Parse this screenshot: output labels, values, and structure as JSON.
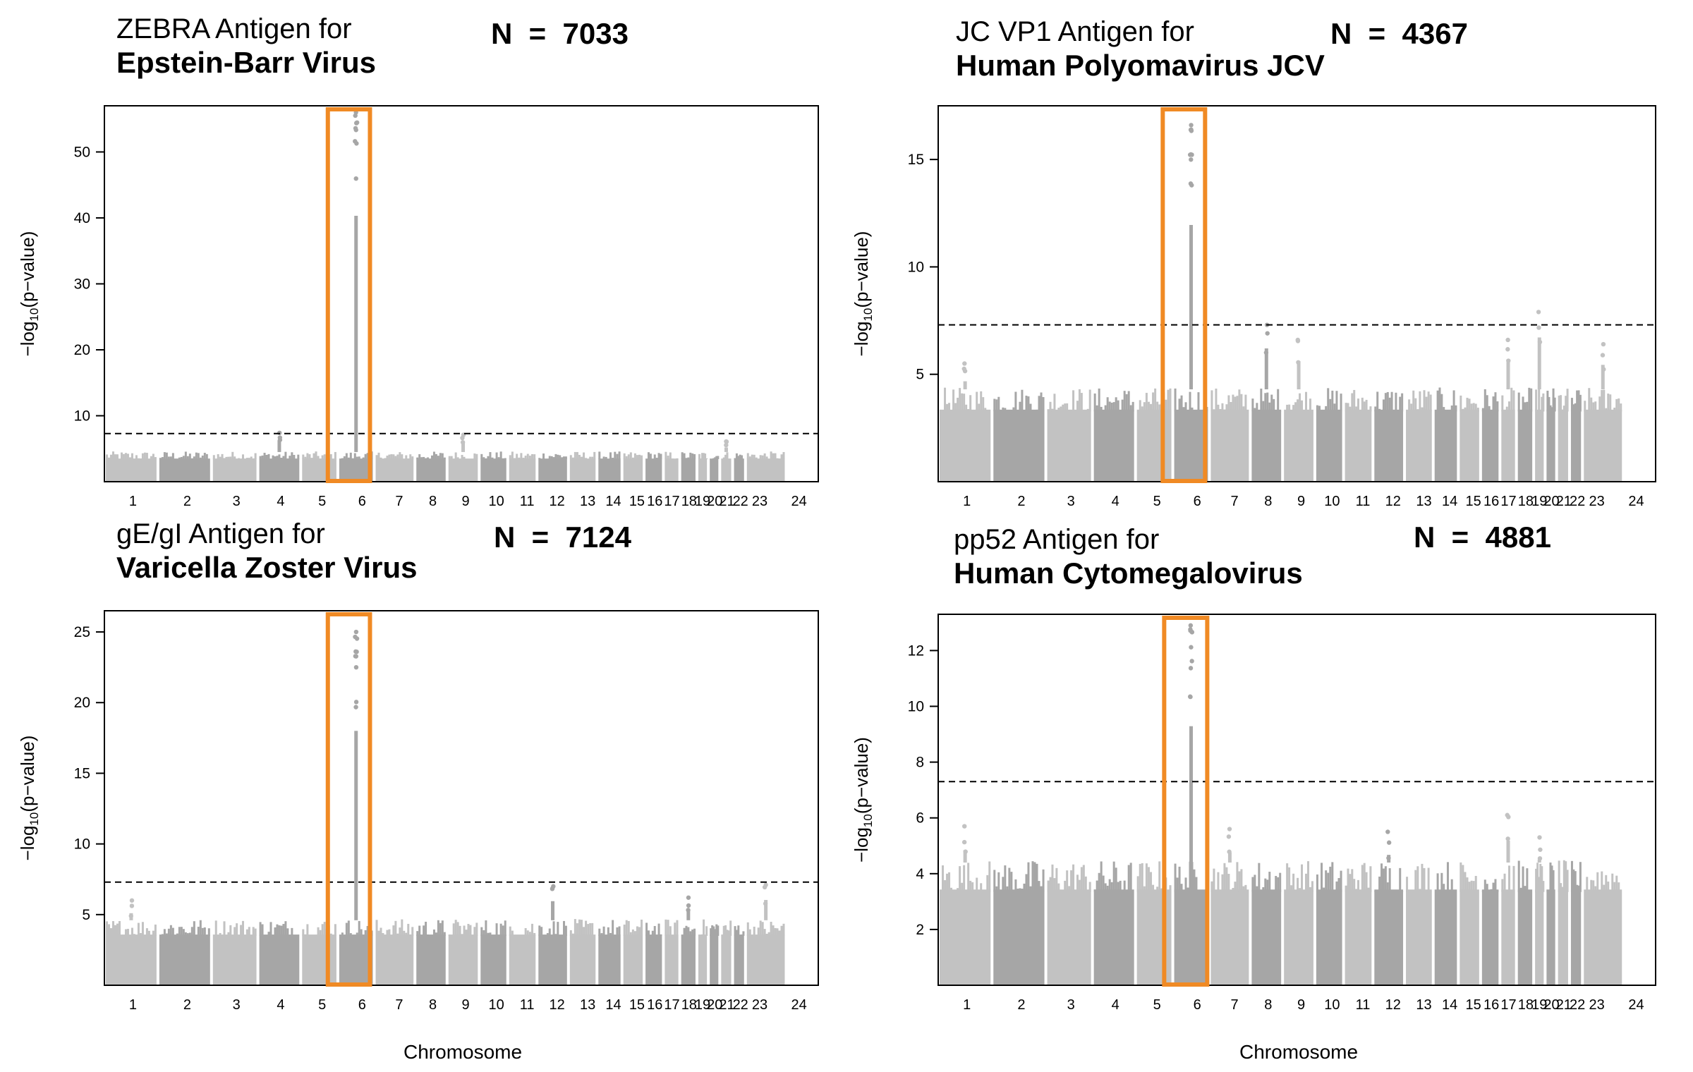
{
  "panels": [
    {
      "title_line1": "ZEBRA Antigen for",
      "title_line2": "Epstein-Barr Virus",
      "n_label": "N  =  7033"
    },
    {
      "title_line1": "JC VP1 Antigen for",
      "title_line2": "Human Polyomavirus JCV",
      "n_label": "N  =  4367"
    },
    {
      "title_line1": "gE/gI Antigen for",
      "title_line2": "Varicella Zoster Virus",
      "n_label": "N  =  7124"
    },
    {
      "title_line1": "pp52 Antigen for",
      "title_line2": "Human Cytomegalovirus",
      "n_label": "N  =  4881"
    }
  ],
  "x_axis_title": "Chromosome",
  "colors": {
    "chrom_light": "#c2c2c2",
    "chrom_dark": "#a6a6a6",
    "highlight_box": "#f08a24",
    "threshold_line": "#000000"
  },
  "chart_data": [
    {
      "type": "scatter",
      "subtype": "manhattan",
      "title": "ZEBRA Antigen for Epstein-Barr Virus",
      "xlabel": "",
      "ylabel": "-log10(p-value)",
      "x_tick_labels": [
        "1",
        "2",
        "3",
        "4",
        "5",
        "6",
        "7",
        "8",
        "9",
        "10",
        "11",
        "12",
        "13",
        "14",
        "15",
        "16",
        "17",
        "18",
        "19",
        "20",
        "21",
        "22",
        "23",
        "24"
      ],
      "y_ticks": [
        10,
        20,
        30,
        40,
        50
      ],
      "ylim": [
        0,
        57
      ],
      "threshold": 7.3,
      "baseline_max": 4.5,
      "highlight_region": "chromosome 6 (HLA)",
      "peaks": [
        {
          "chrom": "6",
          "max_y": 56
        },
        {
          "chrom": "4",
          "max_y": 7.4
        },
        {
          "chrom": "9",
          "max_y": 7.1
        },
        {
          "chrom": "21",
          "max_y": 6.1
        }
      ]
    },
    {
      "type": "scatter",
      "subtype": "manhattan",
      "title": "JC VP1 Antigen for Human Polyomavirus JCV",
      "xlabel": "",
      "ylabel": "-log10(p-value)",
      "x_tick_labels": [
        "1",
        "2",
        "3",
        "4",
        "5",
        "6",
        "7",
        "8",
        "9",
        "10",
        "11",
        "12",
        "13",
        "14",
        "15",
        "16",
        "17",
        "18",
        "19",
        "20",
        "21",
        "22",
        "23",
        "24"
      ],
      "y_ticks": [
        5,
        10,
        15
      ],
      "ylim": [
        0,
        17.5
      ],
      "threshold": 7.3,
      "baseline_max": 4.3,
      "highlight_region": "chromosome 6 (HLA)",
      "peaks": [
        {
          "chrom": "6",
          "max_y": 16.6
        },
        {
          "chrom": "19",
          "max_y": 7.9
        },
        {
          "chrom": "8",
          "max_y": 7.3
        },
        {
          "chrom": "9",
          "max_y": 6.6
        },
        {
          "chrom": "17",
          "max_y": 6.6
        },
        {
          "chrom": "1",
          "max_y": 5.5
        },
        {
          "chrom": "23",
          "max_y": 6.4
        }
      ]
    },
    {
      "type": "scatter",
      "subtype": "manhattan",
      "title": "gE/gI Antigen for Varicella Zoster Virus",
      "xlabel": "Chromosome",
      "ylabel": "-log10(p-value)",
      "x_tick_labels": [
        "1",
        "2",
        "3",
        "4",
        "5",
        "6",
        "7",
        "8",
        "9",
        "10",
        "11",
        "12",
        "13",
        "14",
        "15",
        "16",
        "17",
        "18",
        "19",
        "20",
        "21",
        "22",
        "23",
        "24"
      ],
      "y_ticks": [
        5,
        10,
        15,
        20,
        25
      ],
      "ylim": [
        0,
        26.5
      ],
      "threshold": 7.3,
      "baseline_max": 4.6,
      "highlight_region": "chromosome 6 (HLA)",
      "peaks": [
        {
          "chrom": "6",
          "max_y": 25
        },
        {
          "chrom": "12",
          "max_y": 7.0
        },
        {
          "chrom": "23",
          "max_y": 7.1
        },
        {
          "chrom": "1",
          "max_y": 6.0
        },
        {
          "chrom": "18",
          "max_y": 6.2
        }
      ]
    },
    {
      "type": "scatter",
      "subtype": "manhattan",
      "title": "pp52 Antigen for Human Cytomegalovirus",
      "xlabel": "Chromosome",
      "ylabel": "-log10(p-value)",
      "x_tick_labels": [
        "1",
        "2",
        "3",
        "4",
        "5",
        "6",
        "7",
        "8",
        "9",
        "10",
        "11",
        "12",
        "13",
        "14",
        "15",
        "16",
        "17",
        "18",
        "19",
        "20",
        "21",
        "22",
        "23",
        "24"
      ],
      "y_ticks": [
        2,
        4,
        6,
        8,
        10,
        12
      ],
      "ylim": [
        0,
        13.3
      ],
      "threshold": 7.3,
      "baseline_max": 4.4,
      "highlight_region": "chromosome 6 (HLA)",
      "peaks": [
        {
          "chrom": "6",
          "max_y": 12.9
        },
        {
          "chrom": "17",
          "max_y": 6.1
        },
        {
          "chrom": "1",
          "max_y": 5.7
        },
        {
          "chrom": "7",
          "max_y": 5.6
        },
        {
          "chrom": "12",
          "max_y": 5.5
        },
        {
          "chrom": "19",
          "max_y": 5.3
        }
      ]
    }
  ]
}
